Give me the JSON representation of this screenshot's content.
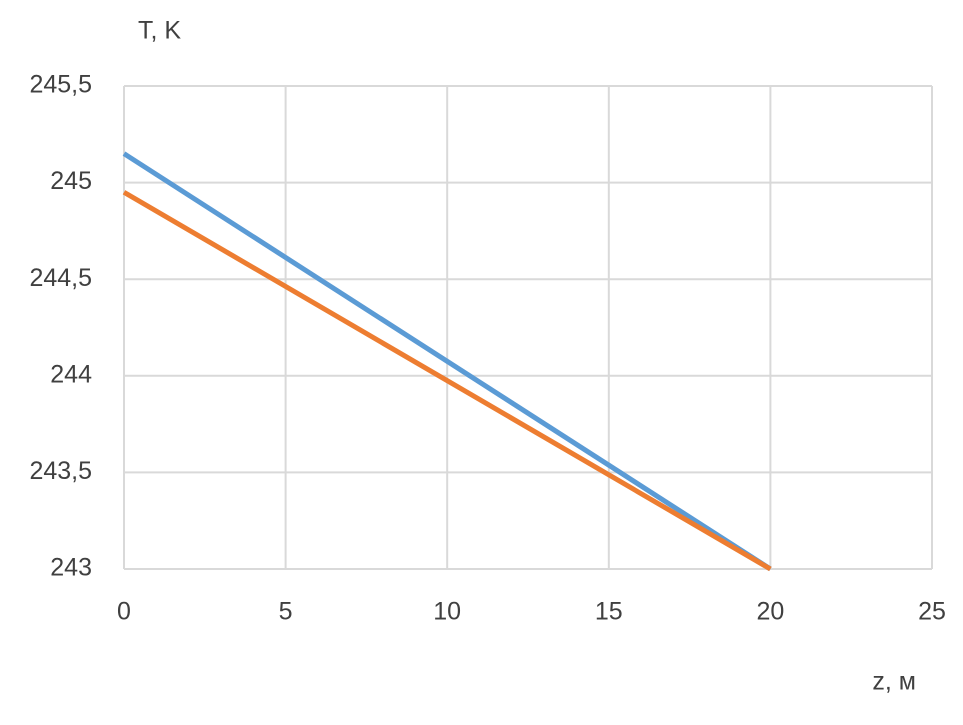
{
  "chart_data": {
    "type": "line",
    "x_label": "z, м",
    "y_label": "T, K",
    "x": [
      0,
      20
    ],
    "series": [
      {
        "color": "#5b9bd5",
        "values": [
          245.15,
          243.0
        ]
      },
      {
        "color": "#ed7d31",
        "values": [
          244.95,
          243.0
        ]
      }
    ],
    "xlim": [
      0,
      25
    ],
    "xticks": [
      0,
      5,
      10,
      15,
      20,
      25
    ],
    "ylim": [
      243,
      245.5
    ],
    "yticks": [
      243,
      {
        "value": 243.5,
        "label": "243,5"
      },
      244,
      {
        "value": 244.5,
        "label": "244,5"
      },
      245,
      {
        "value": 245.5,
        "label": "245,5"
      }
    ],
    "grid": true
  }
}
